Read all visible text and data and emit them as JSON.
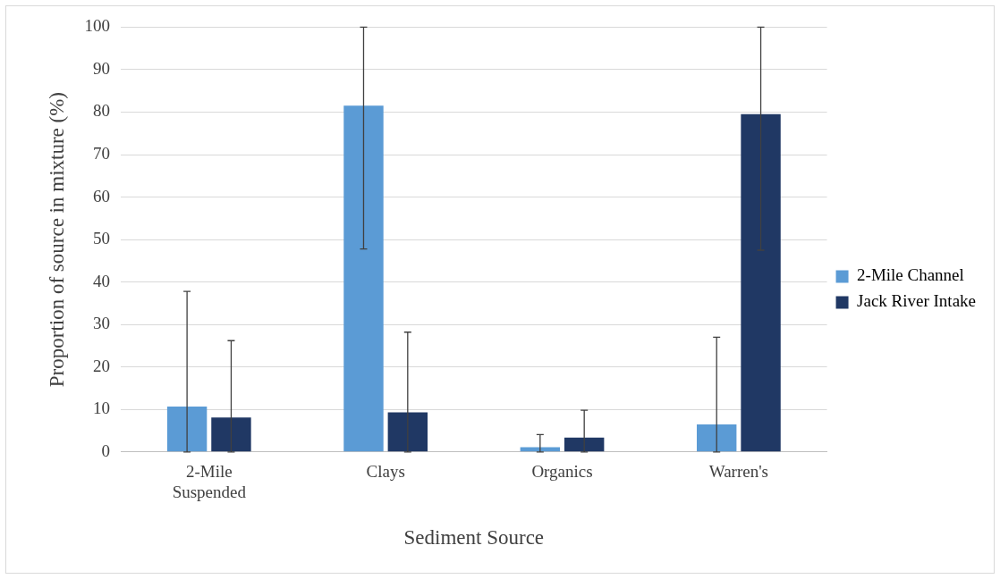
{
  "chart_data": {
    "type": "bar",
    "xlabel": "Sediment Source",
    "ylabel": "Proportion of source in mixture (%)",
    "categories": [
      "2-Mile Suspended",
      "Clays",
      "Organics",
      "Warren's"
    ],
    "series": [
      {
        "name": "2-Mile Channel",
        "color": "#5b9bd5",
        "values": [
          10.7,
          81.5,
          1.1,
          6.5
        ],
        "errors": [
          [
            0,
            37.8
          ],
          [
            47.8,
            100
          ],
          [
            0,
            4.1
          ],
          [
            0,
            27
          ]
        ]
      },
      {
        "name": "Jack River Intake",
        "color": "#203864",
        "values": [
          8.1,
          9.3,
          3.4,
          79.5
        ],
        "errors": [
          [
            0,
            26.2
          ],
          [
            0,
            28.2
          ],
          [
            0,
            9.8
          ],
          [
            47.5,
            100
          ]
        ]
      }
    ],
    "ylim": [
      0,
      100
    ],
    "yticks": [
      0,
      10,
      20,
      30,
      40,
      50,
      60,
      70,
      80,
      90,
      100
    ],
    "grid": "y",
    "legend": "right"
  }
}
